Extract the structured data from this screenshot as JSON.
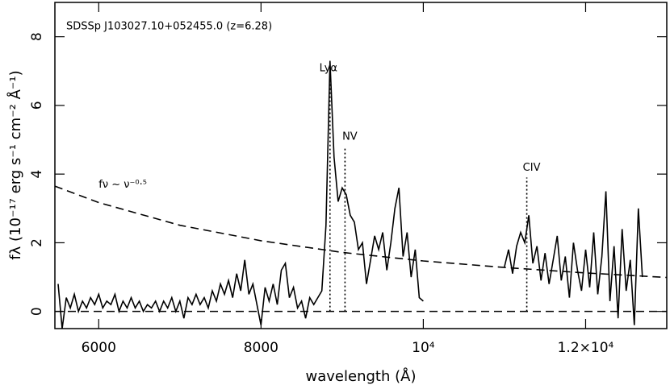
{
  "chart_data": {
    "type": "line",
    "title": "SDSSp J103027.10+052455.0 (z=6.28)",
    "x_label": "wavelength (Å)",
    "y_label": "fλ (10⁻¹⁷ erg s⁻¹ cm⁻² Å⁻¹)",
    "xlim": [
      5460,
      13000
    ],
    "ylim": [
      -0.5,
      9
    ],
    "xticks": [
      6000,
      8000,
      {
        "value": 10000,
        "label": "10⁴"
      },
      {
        "value": 12000,
        "label": "1.2×10⁴"
      }
    ],
    "yticks": [
      0,
      2,
      4,
      6,
      8
    ],
    "reference_lines": [
      0
    ],
    "series": [
      {
        "color": "#000000",
        "style": "solid",
        "x": [
          5500,
          5550,
          5600,
          5650,
          5700,
          5750,
          5800,
          5850,
          5900,
          5950,
          6000,
          6050,
          6100,
          6150,
          6200,
          6250,
          6300,
          6350,
          6400,
          6450,
          6500,
          6550,
          6600,
          6650,
          6700,
          6750,
          6800,
          6850,
          6900,
          6950,
          7000,
          7050,
          7100,
          7150,
          7200,
          7250,
          7300,
          7350,
          7400,
          7450,
          7500,
          7550,
          7600,
          7650,
          7700,
          7750,
          7800,
          7850,
          7900,
          7950,
          8000,
          8050,
          8100,
          8150,
          8200,
          8250,
          8300,
          8350,
          8400,
          8450,
          8500,
          8550,
          8600,
          8650,
          8700,
          8750,
          8800,
          8850,
          8900,
          8950,
          9000,
          9050,
          9100,
          9150,
          9200,
          9250,
          9300,
          9350,
          9400,
          9450,
          9500,
          9550,
          9600,
          9650,
          9700,
          9750,
          9800,
          9850,
          9900,
          9950,
          10000,
          10500,
          11000,
          11050,
          11100,
          11150,
          11200,
          11250,
          11300,
          11350,
          11400,
          11450,
          11500,
          11550,
          11600,
          11650,
          11700,
          11750,
          11800,
          11850,
          11900,
          11950,
          12000,
          12050,
          12100,
          12150,
          12200,
          12250,
          12300,
          12350,
          12400,
          12450,
          12500,
          12550,
          12600,
          12650,
          12700
        ],
        "values": [
          0.8,
          -0.5,
          0.4,
          0.1,
          0.5,
          0.0,
          0.3,
          0.1,
          0.4,
          0.2,
          0.5,
          0.1,
          0.3,
          0.2,
          0.5,
          0.0,
          0.3,
          0.1,
          0.4,
          0.1,
          0.3,
          0.0,
          0.2,
          0.1,
          0.3,
          0.0,
          0.3,
          0.1,
          0.4,
          0.0,
          0.3,
          -0.2,
          0.4,
          0.2,
          0.5,
          0.2,
          0.4,
          0.1,
          0.6,
          0.3,
          0.8,
          0.5,
          0.9,
          0.4,
          1.1,
          0.6,
          1.5,
          0.5,
          0.8,
          0.2,
          -0.4,
          0.7,
          0.3,
          0.8,
          0.2,
          1.2,
          1.4,
          0.4,
          0.7,
          0.1,
          0.3,
          -0.2,
          0.4,
          0.2,
          0.4,
          0.6,
          2.5,
          7.3,
          4.5,
          3.2,
          3.6,
          3.4,
          2.8,
          2.6,
          1.8,
          2.0,
          0.8,
          1.5,
          2.2,
          1.8,
          2.3,
          1.2,
          2.0,
          3.0,
          3.6,
          1.6,
          2.3,
          1.0,
          1.8,
          0.4,
          0.3,
          null,
          1.3,
          1.8,
          1.1,
          1.9,
          2.3,
          2.0,
          2.8,
          1.4,
          1.9,
          0.9,
          1.7,
          0.8,
          1.5,
          2.2,
          0.9,
          1.6,
          0.4,
          2.0,
          1.2,
          0.6,
          1.8,
          0.7,
          2.3,
          0.5,
          1.6,
          3.5,
          0.3,
          1.9,
          -0.2,
          2.4,
          0.6,
          1.5,
          -0.4,
          3.0,
          1.0
        ]
      },
      {
        "name": "fν ~ ν⁻⁰·⁵",
        "color": "#000000",
        "style": "dashed",
        "x": [
          5460,
          6000,
          7000,
          8000,
          9000,
          10000,
          11000,
          12000,
          13000
        ],
        "values": [
          3.65,
          3.17,
          2.51,
          2.06,
          1.72,
          1.47,
          1.28,
          1.12,
          0.99
        ]
      }
    ],
    "annotations": [
      {
        "text": "Lyα",
        "x": 8850,
        "y": 6.8
      },
      {
        "text": "NV",
        "x": 9035,
        "y": 4.8
      },
      {
        "text": "CIV",
        "x": 11275,
        "y": 3.9
      }
    ]
  }
}
